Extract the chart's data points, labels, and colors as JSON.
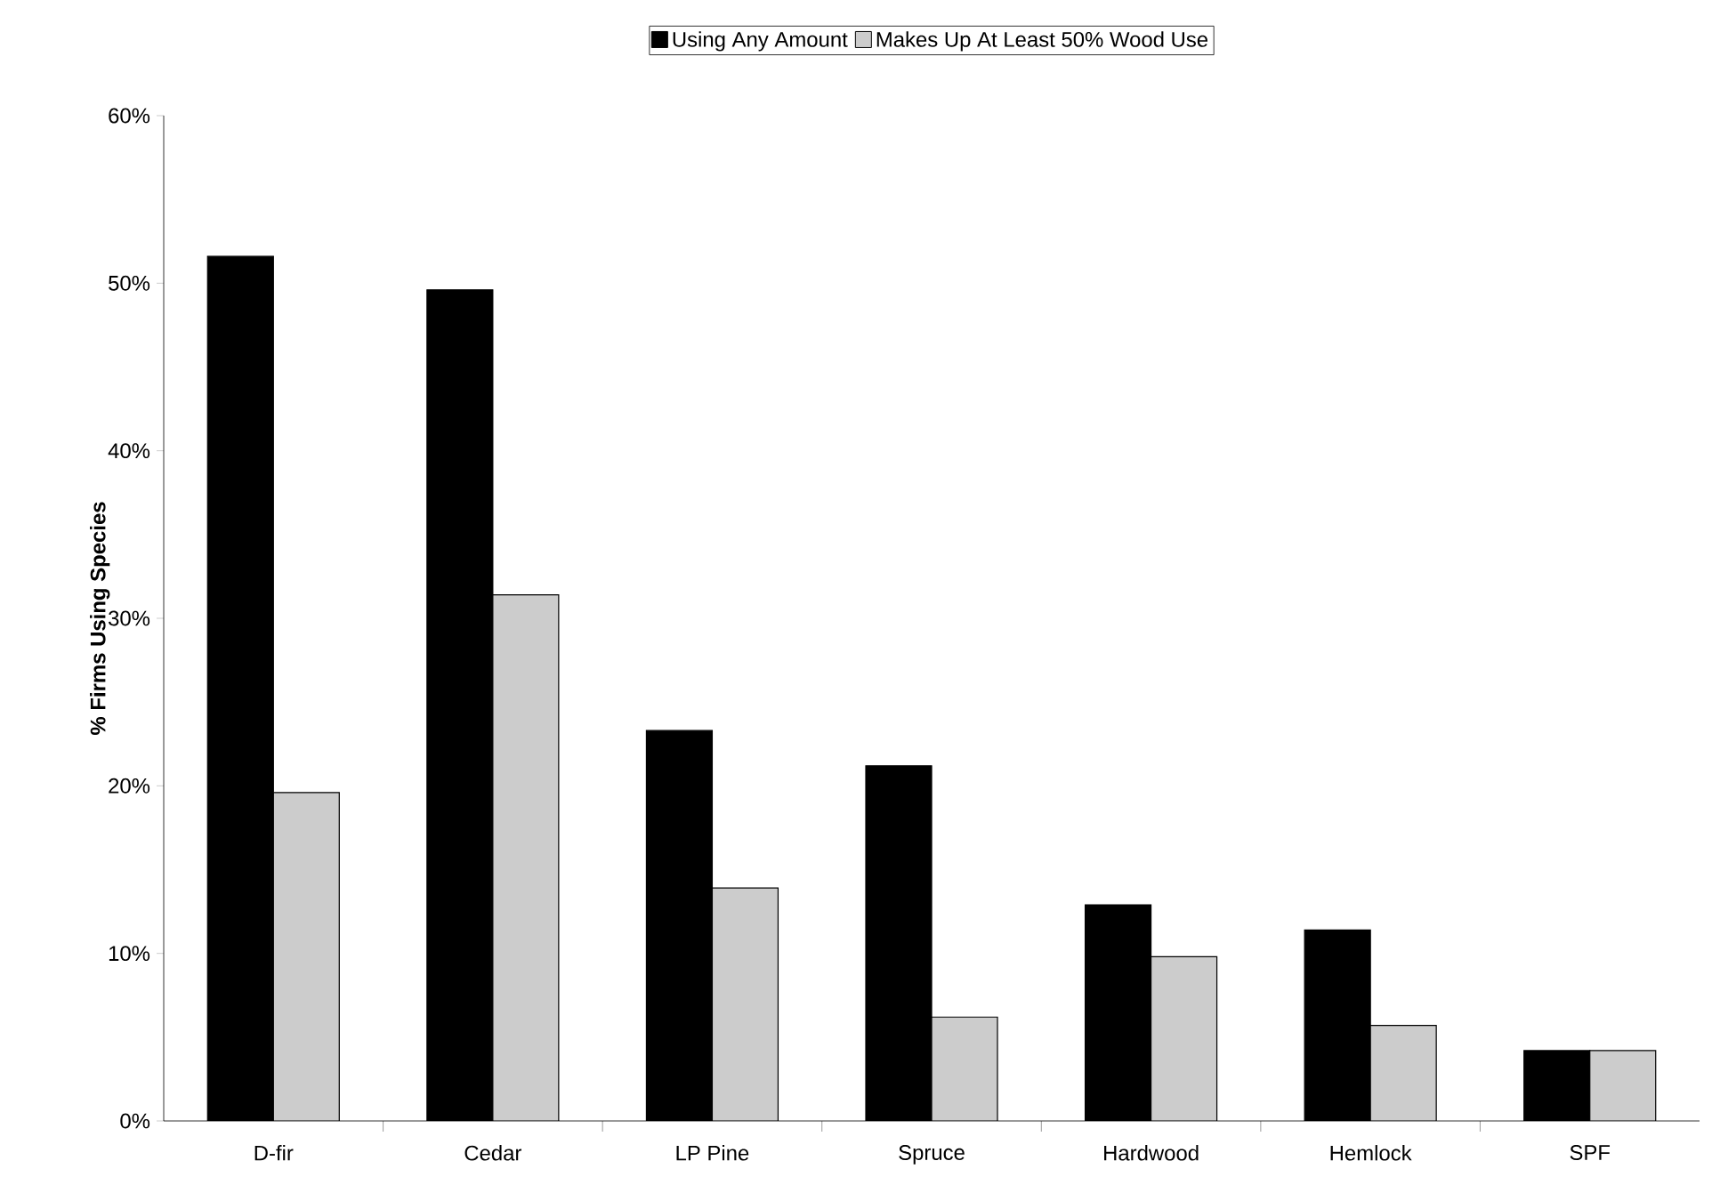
{
  "chart_data": {
    "type": "bar",
    "ylabel": "% Firms Using Species",
    "categories": [
      "D-fir",
      "Cedar",
      "LP Pine",
      "Spruce",
      "Hardwood",
      "Hemlock",
      "SPF"
    ],
    "series": [
      {
        "name": "Using  Any Amount",
        "color": "#000000",
        "values": [
          51.6,
          49.6,
          23.3,
          21.2,
          12.9,
          11.4,
          4.2
        ]
      },
      {
        "name": "Makes Up  At Least  50% Wood Use",
        "color": "#cccccc",
        "values": [
          19.6,
          31.4,
          13.9,
          6.2,
          9.8,
          5.7,
          4.2
        ]
      }
    ],
    "ylim": [
      0,
      60
    ],
    "yticks": [
      {
        "value": 0,
        "label": "0%"
      },
      {
        "value": 10,
        "label": "10%"
      },
      {
        "value": 20,
        "label": "20%"
      },
      {
        "value": 30,
        "label": "30%"
      },
      {
        "value": 40,
        "label": "40%"
      },
      {
        "value": 50,
        "label": "50%"
      },
      {
        "value": 60,
        "label": "60%"
      }
    ],
    "legend": "top",
    "grid": false
  }
}
